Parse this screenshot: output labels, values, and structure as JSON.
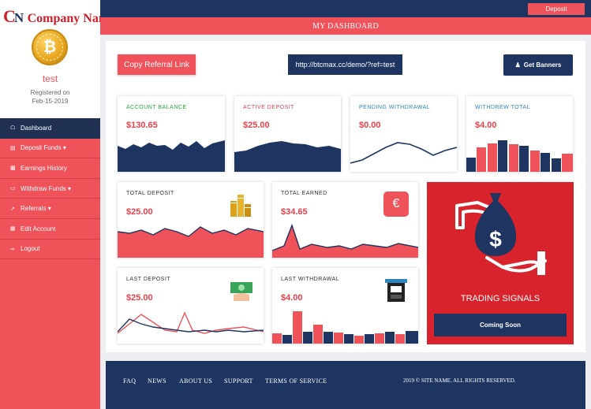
{
  "brand": {
    "logo_mark": "C",
    "logo_mark2": "N",
    "name": "Company Name"
  },
  "user": {
    "name": "test",
    "registered_label": "Registered on",
    "registered_date": "Feb-15-2019"
  },
  "menu": [
    {
      "label": "Dashboard",
      "icon": "home-icon",
      "active": true
    },
    {
      "label": "Deposit Funds",
      "icon": "bank-icon",
      "dropdown": true
    },
    {
      "label": "Earnings History",
      "icon": "bar-chart-icon"
    },
    {
      "label": "Withdraw Funds",
      "icon": "money-icon",
      "dropdown": true
    },
    {
      "label": "Referrals",
      "icon": "external-link-icon",
      "dropdown": true
    },
    {
      "label": "Edit Account",
      "icon": "id-card-icon"
    },
    {
      "label": "Logout",
      "icon": "sign-out-icon"
    }
  ],
  "header": {
    "deposit_button": "Deposit",
    "page_title": "MY DASHBOARD"
  },
  "actions": {
    "copy_referral": "Copy Referral Link",
    "referral_url": "http://btcmax.cc/demo/?ref=test",
    "get_banners": "Get Banners"
  },
  "stats_top": [
    {
      "label": "ACCOUNT BALANCE",
      "value": "$130.65",
      "label_color": "#27a844"
    },
    {
      "label": "ACTIVE DEPOSIT",
      "value": "$25.00",
      "label_color": "#e8404b"
    },
    {
      "label": "PENDING WITHDRAWAL",
      "value": "$0.00",
      "label_color": "#2e86c1"
    },
    {
      "label": "WITHDREW TOTAL",
      "value": "$4.00",
      "label_color": "#2e86c1"
    }
  ],
  "stats_mid": [
    {
      "label": "TOTAL DEPOSIT",
      "value": "$25.00",
      "icon": "coin-stack-icon"
    },
    {
      "label": "TOTAL EARNED",
      "value": "$34.65",
      "icon": "euro-wallet-icon"
    },
    {
      "label": "LAST DEPOSIT",
      "value": "$25.00",
      "icon": "cash-hand-icon"
    },
    {
      "label": "LAST WITHDRAWAL",
      "value": "$4.00",
      "icon": "atm-icon"
    }
  ],
  "signals": {
    "title": "TRADING SIGNALS",
    "button": "Coming Soon",
    "icon": "money-bag-hand-icon"
  },
  "footer": {
    "links": [
      "FAQ",
      "NEWS",
      "ABOUT US",
      "SUPPORT",
      "TERMS OF SERVICE"
    ],
    "copyright": "2019 © SITE NAME. ALL RIGHTS RESERVED."
  },
  "colors": {
    "navy": "#1e3561",
    "coral": "#f0525a",
    "red": "#d8232d"
  }
}
